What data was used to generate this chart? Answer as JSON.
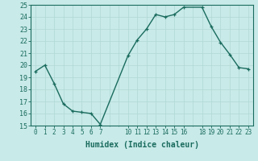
{
  "x": [
    0,
    1,
    2,
    3,
    4,
    5,
    6,
    7,
    10,
    11,
    12,
    13,
    14,
    15,
    16,
    18,
    19,
    20,
    21,
    22,
    23
  ],
  "y": [
    19.5,
    20.0,
    18.5,
    16.8,
    16.2,
    16.1,
    16.0,
    15.1,
    20.8,
    22.1,
    23.0,
    24.2,
    24.0,
    24.2,
    24.8,
    24.8,
    23.2,
    21.9,
    20.9,
    19.8,
    19.7
  ],
  "line_color": "#1a6b5e",
  "marker_color": "#1a6b5e",
  "bg_color": "#c8eae8",
  "grid_color": "#b0d8d4",
  "xlabel": "Humidex (Indice chaleur)",
  "ylim": [
    15,
    25
  ],
  "xlim": [
    -0.5,
    23.5
  ],
  "yticks": [
    15,
    16,
    17,
    18,
    19,
    20,
    21,
    22,
    23,
    24,
    25
  ],
  "xtick_positions": [
    0,
    1,
    2,
    3,
    4,
    5,
    6,
    7,
    10,
    11,
    12,
    13,
    14,
    15,
    16,
    18,
    19,
    20,
    21,
    22,
    23
  ],
  "xtick_labels": [
    "0",
    "1",
    "2",
    "3",
    "4",
    "5",
    "6",
    "7",
    "10",
    "11",
    "12",
    "13",
    "14",
    "15",
    "16",
    "18",
    "19",
    "20",
    "21",
    "22",
    "23"
  ],
  "minor_xticks": [
    0,
    1,
    2,
    3,
    4,
    5,
    6,
    7,
    8,
    9,
    10,
    11,
    12,
    13,
    14,
    15,
    16,
    17,
    18,
    19,
    20,
    21,
    22,
    23
  ],
  "ytick_fontsize": 6,
  "xtick_fontsize": 5.5,
  "xlabel_fontsize": 7,
  "linewidth": 1.0,
  "markersize": 3.5,
  "markeredgewidth": 0.9
}
